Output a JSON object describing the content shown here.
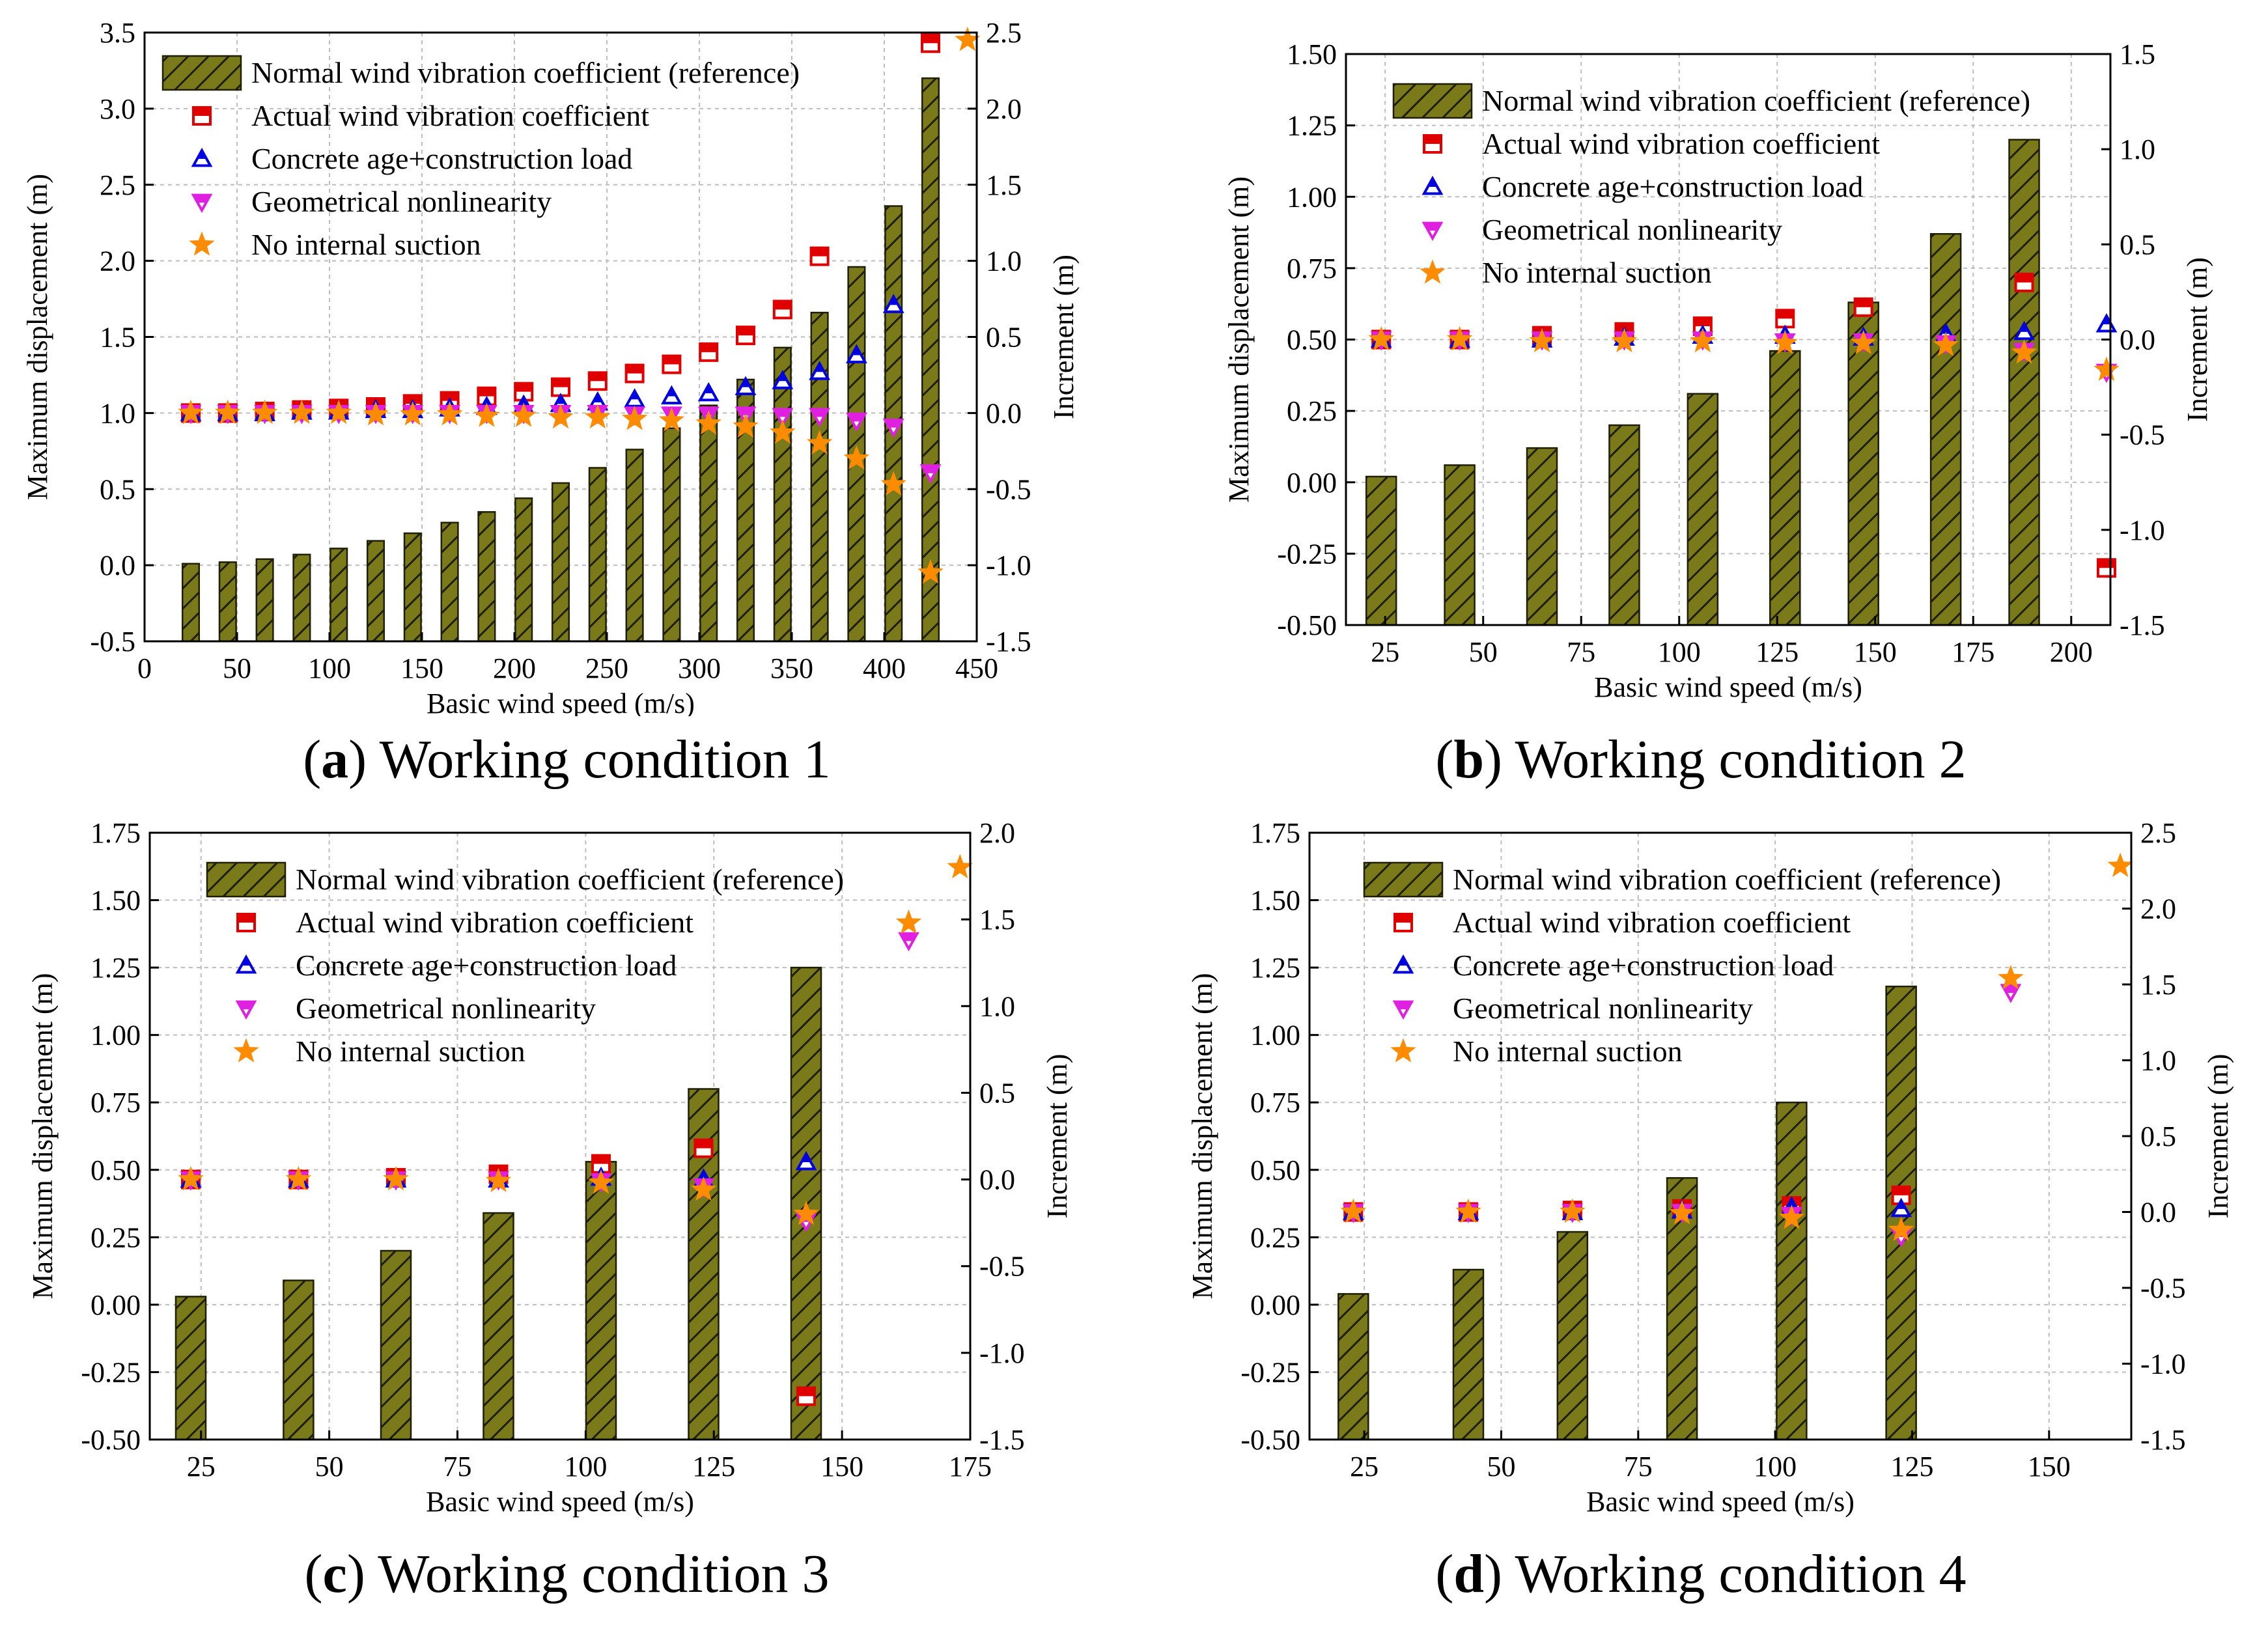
{
  "chart_data": [
    {
      "type": "bar",
      "caption": {
        "letter": "a",
        "text": "Working condition 1"
      },
      "xlabel": "Basic wind speed (m/s)",
      "ylabel": "Maximum displacement (m)",
      "y2label": "Increment (m)",
      "xlim": [
        0,
        450
      ],
      "ylim": [
        -0.5,
        3.5
      ],
      "y2lim": [
        -1.5,
        2.5
      ],
      "xticks": [
        "0",
        "50",
        "100",
        "150",
        "200",
        "250",
        "300",
        "350",
        "400",
        "450"
      ],
      "yticks": [
        "-0.5",
        "0.0",
        "0.5",
        "1.0",
        "1.5",
        "2.0",
        "2.5",
        "3.0",
        "3.5"
      ],
      "y2ticks": [
        "-1.5",
        "-1.0",
        "-0.5",
        "0.0",
        "0.5",
        "1.0",
        "1.5",
        "2.0",
        "2.5"
      ],
      "legend_position": "top-left",
      "grid": true,
      "series": [
        {
          "name": "Normal wind vibration coefficient (reference)",
          "kind": "bar",
          "axis": "left",
          "color": "#7a7a1a",
          "x": [
            25,
            45,
            65,
            85,
            105,
            125,
            145,
            165,
            185,
            205,
            225,
            245,
            265,
            285,
            305,
            325,
            345,
            365,
            385,
            405,
            425
          ],
          "values": [
            0.01,
            0.02,
            0.04,
            0.07,
            0.11,
            0.16,
            0.21,
            0.28,
            0.35,
            0.44,
            0.54,
            0.64,
            0.76,
            0.9,
            1.05,
            1.22,
            1.43,
            1.66,
            1.96,
            2.36,
            3.2
          ]
        },
        {
          "name": "Actual wind vibration coefficient",
          "kind": "marker",
          "marker": "square",
          "axis": "right",
          "color": "#e00000",
          "x": [
            25,
            45,
            65,
            85,
            105,
            125,
            145,
            165,
            185,
            205,
            225,
            245,
            265,
            285,
            305,
            325,
            345,
            365,
            385,
            405,
            425
          ],
          "values": [
            0.0,
            0.0,
            0.01,
            0.02,
            0.03,
            0.04,
            0.06,
            0.08,
            0.11,
            0.14,
            0.17,
            0.21,
            0.26,
            0.32,
            0.4,
            0.51,
            0.68,
            1.03,
            null,
            null,
            2.43
          ]
        },
        {
          "name": "Concrete age+construction load",
          "kind": "marker",
          "marker": "triangle-up",
          "axis": "right",
          "color": "#0000e0",
          "x": [
            25,
            45,
            65,
            85,
            105,
            125,
            145,
            165,
            185,
            205,
            225,
            245,
            265,
            285,
            305,
            325,
            345,
            365,
            385,
            405
          ],
          "values": [
            0.0,
            0.0,
            0.0,
            0.01,
            0.01,
            0.02,
            0.02,
            0.03,
            0.04,
            0.05,
            0.06,
            0.07,
            0.09,
            0.11,
            0.13,
            0.17,
            0.21,
            0.27,
            0.38,
            0.71
          ]
        },
        {
          "name": "Geometrical nonlinearity",
          "kind": "marker",
          "marker": "triangle-down",
          "axis": "right",
          "color": "#e020e0",
          "x": [
            25,
            45,
            65,
            85,
            105,
            125,
            145,
            165,
            185,
            205,
            225,
            245,
            265,
            285,
            305,
            325,
            345,
            365,
            385,
            405,
            425
          ],
          "values": [
            0.0,
            0.0,
            0.0,
            0.0,
            0.0,
            0.0,
            0.0,
            0.0,
            0.0,
            0.0,
            0.0,
            0.0,
            -0.01,
            -0.01,
            -0.01,
            -0.01,
            -0.02,
            -0.02,
            -0.05,
            -0.09,
            -0.39
          ]
        },
        {
          "name": "No internal suction",
          "kind": "marker",
          "marker": "star",
          "axis": "right",
          "color": "#ff8c00",
          "x": [
            25,
            45,
            65,
            85,
            105,
            125,
            145,
            165,
            185,
            205,
            225,
            245,
            265,
            285,
            305,
            325,
            345,
            365,
            385,
            405,
            425,
            445
          ],
          "values": [
            0.0,
            0.0,
            0.0,
            0.0,
            0.0,
            -0.01,
            -0.01,
            -0.01,
            -0.02,
            -0.02,
            -0.03,
            -0.03,
            -0.04,
            -0.05,
            -0.07,
            -0.09,
            -0.13,
            -0.2,
            -0.3,
            -0.47,
            -1.05,
            2.45
          ]
        }
      ]
    },
    {
      "type": "bar",
      "caption": {
        "letter": "b",
        "text": "Working condition 2"
      },
      "xlabel": "Basic wind speed (m/s)",
      "ylabel": "Maximum displacement (m)",
      "y2label": "Increment (m)",
      "xlim": [
        15,
        210
      ],
      "ylim": [
        -0.5,
        1.5
      ],
      "y2lim": [
        -1.5,
        1.5
      ],
      "xticks": [
        "25",
        "50",
        "75",
        "100",
        "125",
        "150",
        "175",
        "200"
      ],
      "yticks": [
        "-0.50",
        "-0.25",
        "0.00",
        "0.25",
        "0.50",
        "0.75",
        "1.00",
        "1.25",
        "1.50"
      ],
      "y2ticks": [
        "-1.5",
        "-1.0",
        "-0.5",
        "0.0",
        "0.5",
        "1.0",
        "1.5"
      ],
      "legend_position": "top-right",
      "grid": true,
      "series": [
        {
          "name": "Normal wind vibration coefficient (reference)",
          "kind": "bar",
          "axis": "left",
          "color": "#7a7a1a",
          "x": [
            24,
            44,
            65,
            86,
            106,
            127,
            147,
            168,
            188
          ],
          "values": [
            0.02,
            0.06,
            0.12,
            0.2,
            0.31,
            0.46,
            0.63,
            0.87,
            1.2
          ]
        },
        {
          "name": "Actual wind vibration coefficient",
          "kind": "marker",
          "marker": "square",
          "axis": "right",
          "color": "#e00000",
          "x": [
            24,
            44,
            65,
            86,
            106,
            127,
            147,
            168,
            188,
            209
          ],
          "values": [
            0.0,
            0.0,
            0.02,
            0.04,
            0.07,
            0.11,
            0.17,
            null,
            0.3,
            -1.2
          ]
        },
        {
          "name": "Concrete age+construction load",
          "kind": "marker",
          "marker": "triangle-up",
          "axis": "right",
          "color": "#0000e0",
          "x": [
            24,
            44,
            65,
            86,
            106,
            127,
            147,
            168,
            188,
            209
          ],
          "values": [
            0.0,
            0.0,
            0.0,
            0.01,
            0.02,
            0.02,
            0.01,
            0.03,
            0.04,
            0.08
          ]
        },
        {
          "name": "Geometrical nonlinearity",
          "kind": "marker",
          "marker": "triangle-down",
          "axis": "right",
          "color": "#e020e0",
          "x": [
            24,
            44,
            65,
            86,
            106,
            127,
            147,
            168,
            188,
            209
          ],
          "values": [
            0.0,
            0.0,
            0.0,
            0.0,
            0.0,
            -0.01,
            -0.01,
            -0.02,
            -0.06,
            -0.17
          ]
        },
        {
          "name": "No internal suction",
          "kind": "marker",
          "marker": "star",
          "axis": "right",
          "color": "#ff8c00",
          "x": [
            24,
            44,
            65,
            86,
            106,
            127,
            147,
            168,
            188,
            209
          ],
          "values": [
            0.0,
            0.0,
            -0.01,
            -0.01,
            -0.01,
            -0.02,
            -0.02,
            -0.03,
            -0.07,
            -0.16
          ]
        }
      ]
    },
    {
      "type": "bar",
      "caption": {
        "letter": "c",
        "text": "Working condition 3"
      },
      "xlabel": "Basic wind speed (m/s)",
      "ylabel": "Maximum displacement (m)",
      "y2label": "Increment (m)",
      "xlim": [
        15,
        175
      ],
      "ylim": [
        -0.5,
        1.75
      ],
      "y2lim": [
        -1.5,
        2.0
      ],
      "xticks": [
        "25",
        "50",
        "75",
        "100",
        "125",
        "150",
        "175"
      ],
      "yticks": [
        "-0.50",
        "-0.25",
        "0.00",
        "0.25",
        "0.50",
        "0.75",
        "1.00",
        "1.25",
        "1.50",
        "1.75"
      ],
      "y2ticks": [
        "-1.5",
        "-1.0",
        "-0.5",
        "0.0",
        "0.5",
        "1.0",
        "1.5",
        "2.0"
      ],
      "legend_position": "top-right",
      "grid": true,
      "series": [
        {
          "name": "Normal wind vibration coefficient (reference)",
          "kind": "bar",
          "axis": "left",
          "color": "#7a7a1a",
          "x": [
            23,
            44,
            63,
            83,
            103,
            123,
            143
          ],
          "values": [
            0.03,
            0.09,
            0.2,
            0.34,
            0.53,
            0.8,
            1.25
          ]
        },
        {
          "name": "Actual wind vibration coefficient",
          "kind": "marker",
          "marker": "square",
          "axis": "right",
          "color": "#e00000",
          "x": [
            23,
            44,
            63,
            83,
            103,
            123,
            143
          ],
          "values": [
            0.0,
            0.0,
            0.01,
            0.03,
            0.09,
            0.18,
            -1.25
          ]
        },
        {
          "name": "Concrete age+construction load",
          "kind": "marker",
          "marker": "triangle-up",
          "axis": "right",
          "color": "#0000e0",
          "x": [
            23,
            44,
            63,
            83,
            103,
            123,
            143
          ],
          "values": [
            0.0,
            0.0,
            0.0,
            0.0,
            0.01,
            0.0,
            0.1
          ]
        },
        {
          "name": "Geometrical nonlinearity",
          "kind": "marker",
          "marker": "triangle-down",
          "axis": "right",
          "color": "#e020e0",
          "x": [
            23,
            44,
            63,
            83,
            103,
            123,
            143,
            163
          ],
          "values": [
            0.0,
            0.0,
            0.0,
            0.0,
            -0.01,
            -0.04,
            -0.24,
            1.38
          ]
        },
        {
          "name": "No internal suction",
          "kind": "marker",
          "marker": "star",
          "axis": "right",
          "color": "#ff8c00",
          "x": [
            23,
            44,
            63,
            83,
            103,
            123,
            143,
            163,
            173
          ],
          "values": [
            0.0,
            0.0,
            0.0,
            -0.01,
            -0.02,
            -0.06,
            -0.2,
            1.48,
            1.8
          ]
        }
      ]
    },
    {
      "type": "bar",
      "caption": {
        "letter": "d",
        "text": "Working condition 4"
      },
      "xlabel": "Basic wind speed (m/s)",
      "ylabel": "Maximum displacement (m)",
      "y2label": "Increment (m)",
      "xlim": [
        15,
        165
      ],
      "ylim": [
        -0.5,
        1.75
      ],
      "y2lim": [
        -1.5,
        2.5
      ],
      "xticks": [
        "25",
        "50",
        "75",
        "100",
        "125",
        "150"
      ],
      "yticks": [
        "-0.50",
        "-0.25",
        "0.00",
        "0.25",
        "0.50",
        "0.75",
        "1.00",
        "1.25",
        "1.50",
        "1.75"
      ],
      "y2ticks": [
        "-1.5",
        "-1.0",
        "-0.5",
        "0.0",
        "0.5",
        "1.0",
        "1.5",
        "2.0",
        "2.5"
      ],
      "legend_position": "top-right",
      "grid": true,
      "series": [
        {
          "name": "Normal wind vibration coefficient (reference)",
          "kind": "bar",
          "axis": "left",
          "color": "#7a7a1a",
          "x": [
            23,
            44,
            63,
            83,
            103,
            123
          ],
          "values": [
            0.04,
            0.13,
            0.27,
            0.47,
            0.75,
            1.18
          ]
        },
        {
          "name": "Actual wind vibration coefficient",
          "kind": "marker",
          "marker": "square",
          "axis": "right",
          "color": "#e00000",
          "x": [
            23,
            44,
            63,
            83,
            103,
            123
          ],
          "values": [
            0.0,
            0.0,
            0.01,
            0.02,
            0.04,
            0.11
          ]
        },
        {
          "name": "Concrete age+construction load",
          "kind": "marker",
          "marker": "triangle-up",
          "axis": "right",
          "color": "#0000e0",
          "x": [
            23,
            44,
            63,
            83,
            103,
            123
          ],
          "values": [
            0.0,
            0.0,
            0.0,
            0.01,
            0.03,
            0.02
          ]
        },
        {
          "name": "Geometrical nonlinearity",
          "kind": "marker",
          "marker": "triangle-down",
          "axis": "right",
          "color": "#e020e0",
          "x": [
            23,
            44,
            63,
            83,
            103,
            123,
            143
          ],
          "values": [
            0.0,
            0.0,
            0.0,
            0.0,
            -0.02,
            -0.16,
            1.45
          ]
        },
        {
          "name": "No internal suction",
          "kind": "marker",
          "marker": "star",
          "axis": "right",
          "color": "#ff8c00",
          "x": [
            23,
            44,
            63,
            83,
            103,
            123,
            143,
            163
          ],
          "values": [
            0.0,
            0.0,
            0.0,
            -0.01,
            -0.04,
            -0.12,
            1.54,
            2.28
          ]
        }
      ]
    }
  ]
}
